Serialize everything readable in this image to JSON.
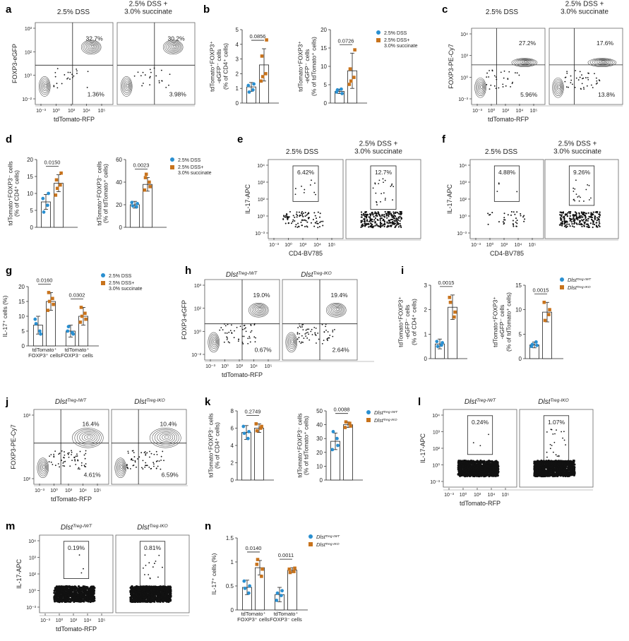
{
  "figure": {
    "palette": {
      "control": "#2a8fd0",
      "treated": "#c8731c",
      "axis": "#333333",
      "contour": "#555555",
      "dots": "#111111"
    },
    "panel_labels": [
      "a",
      "b",
      "c",
      "d",
      "e",
      "f",
      "g",
      "h",
      "i",
      "j",
      "k",
      "l",
      "m",
      "n"
    ],
    "conditions": {
      "dss": "2.5% DSS",
      "dss_succ": "2.5% DSS +\n3.0% succinate",
      "wt": "Dlst",
      "wt_sup": "Treg-IWT",
      "ko": "Dlst",
      "ko_sup": "Treg-IKO"
    },
    "legends": {
      "dss": "2.5% DSS",
      "dss_succ": "2.5% DSS+\n3.0% succinate",
      "wt": "Dlst",
      "wt_sup": "Treg-IWT",
      "ko": "Dlst",
      "ko_sup": "Treg-IKO"
    },
    "flow_axes": {
      "foxp3_egfp": "FOXP3-eGFP",
      "foxp3_pecy7": "FOXP3-PE-Cy7",
      "il17_apc": "IL-17-APC",
      "tdtomato": "tdTomato-RFP",
      "cd4": "CD4-BV785",
      "ticks_x": [
        "10⁻³",
        "10⁰",
        "10³",
        "10⁴",
        "10⁵"
      ],
      "ticks_y_a": [
        "10³",
        "10²",
        "10⁰",
        "10⁻²"
      ],
      "ticks_y_c": [
        "10⁴",
        "10³",
        "10⁰",
        "10⁻³"
      ],
      "ticks_y_e": [
        "10⁴",
        "10³",
        "10²",
        "10⁰",
        "10⁻³"
      ]
    },
    "flow_panels": {
      "a": {
        "left": {
          "q_upper": "32.7%",
          "q_lower": "1.36%"
        },
        "right": {
          "q_upper": "30.2%",
          "q_lower": "3.98%"
        }
      },
      "c": {
        "left": {
          "q_upper": "27.2%",
          "q_lower": "5.96%"
        },
        "right": {
          "q_upper": "17.6%",
          "q_lower": "13.8%"
        }
      },
      "e": {
        "left": {
          "gate": "6.42%"
        },
        "right": {
          "gate": "12.7%"
        }
      },
      "f": {
        "left": {
          "gate": "4.88%"
        },
        "right": {
          "gate": "9.26%"
        }
      },
      "h": {
        "left": {
          "q_upper": "19.0%",
          "q_lower": "0.67%"
        },
        "right": {
          "q_upper": "19.4%",
          "q_lower": "2.64%"
        }
      },
      "j": {
        "left": {
          "q_upper": "16.4%",
          "q_lower": "4.61%"
        },
        "right": {
          "q_upper": "10.4%",
          "q_lower": "6.59%"
        }
      },
      "l": {
        "left": {
          "gate": "0.24%"
        },
        "right": {
          "gate": "1.07%"
        }
      },
      "m": {
        "left": {
          "gate": "0.19%"
        },
        "right": {
          "gate": "0.81%"
        }
      }
    }
  },
  "chart_data": [
    {
      "id": "b1",
      "type": "bar",
      "ylabel": "tdTomato⁺FOXP3⁺\n-eGFP⁻ cells\n(% of CD4⁺ cells)",
      "ylim": [
        0,
        5
      ],
      "yticks": [
        0,
        1,
        2,
        3,
        4,
        5
      ],
      "p": "0.0856",
      "categories": [
        "2.5% DSS",
        "2.5% DSS + 3.0% succinate"
      ],
      "values": [
        1.1,
        2.6
      ],
      "errors": [
        0.3,
        1.1
      ],
      "points": [
        [
          1.2,
          0.9,
          0.75,
          1.3
        ],
        [
          1.5,
          2.0,
          3.2,
          4.3,
          1.8
        ]
      ]
    },
    {
      "id": "b2",
      "type": "bar",
      "ylabel": "tdTomato⁺FOXP3⁺\n-eGFP⁻ cells\n(% of tdTomato⁺ cells)",
      "ylim": [
        0,
        20
      ],
      "yticks": [
        0,
        5,
        10,
        15,
        20
      ],
      "p": "0.0726",
      "categories": [
        "2.5% DSS",
        "2.5% DSS + 3.0% succinate"
      ],
      "values": [
        3.2,
        8.8
      ],
      "errors": [
        0.6,
        4.8
      ],
      "points": [
        [
          3.0,
          3.8,
          3.6,
          2.6
        ],
        [
          5.1,
          7.0,
          9.3,
          14.5,
          6.0
        ]
      ]
    },
    {
      "id": "d1",
      "type": "bar",
      "ylabel": "tdTomato⁺FOXP3⁻ cells\n(% of CD4⁺ cells)",
      "ylim": [
        0,
        20
      ],
      "yticks": [
        0,
        5,
        10,
        15,
        20
      ],
      "p": "0.0150",
      "categories": [
        "2.5% DSS",
        "2.5% DSS + 3.0% succinate"
      ],
      "values": [
        7.5,
        13.0
      ],
      "errors": [
        2.2,
        2.5
      ],
      "points": [
        [
          8.5,
          6.5,
          4.5,
          10.0
        ],
        [
          9.5,
          12.5,
          14.0,
          16.0,
          11.5
        ]
      ]
    },
    {
      "id": "d2",
      "type": "bar",
      "ylabel": "tdTomato⁺FOXP3⁻ cells\n(% of tdTomato⁺ cells)",
      "ylim": [
        0,
        60
      ],
      "yticks": [
        0,
        20,
        40,
        60
      ],
      "p": "0.0023",
      "categories": [
        "2.5% DSS",
        "2.5% DSS + 3.0% succinate"
      ],
      "values": [
        20,
        38
      ],
      "errors": [
        3,
        6
      ],
      "points": [
        [
          22,
          18,
          19,
          21
        ],
        [
          33,
          40,
          44,
          36,
          47
        ]
      ]
    },
    {
      "id": "g",
      "type": "bar",
      "ylabel": "IL-17⁺ cells (%)",
      "ylim": [
        0,
        20
      ],
      "yticks": [
        0,
        5,
        10,
        15,
        20
      ],
      "groups": [
        "tdTomato⁺\nFOXP3⁺ cells",
        "tdTomato⁺\nFOXP3⁻ cells"
      ],
      "p": [
        "0.0160",
        "0.0302"
      ],
      "values": [
        [
          7,
          15
        ],
        [
          5,
          10
        ]
      ],
      "errors": [
        [
          3,
          3
        ],
        [
          2,
          3
        ]
      ],
      "points": [
        [
          [
            9,
            5,
            7.5,
            4
          ],
          [
            12,
            16,
            18,
            14,
            15
          ]
        ],
        [
          [
            5,
            4.5,
            6.5,
            4
          ],
          [
            8,
            11,
            13,
            9,
            10
          ]
        ]
      ]
    },
    {
      "id": "i1",
      "type": "bar",
      "ylabel": "tdTomato⁺FOXP3⁺\n-eGFP⁻ cells\n(% of CD4⁺ cells)",
      "ylim": [
        0,
        3
      ],
      "yticks": [
        0,
        1,
        2,
        3
      ],
      "p": "0.0015",
      "categories": [
        "Dlst Treg-IWT",
        "Dlst Treg-IKO"
      ],
      "values": [
        0.6,
        2.1
      ],
      "errors": [
        0.2,
        0.5
      ],
      "points": [
        [
          0.7,
          0.55,
          0.5,
          0.65
        ],
        [
          2.5,
          1.7,
          2.3,
          1.9
        ]
      ]
    },
    {
      "id": "i2",
      "type": "bar",
      "ylabel": "tdTomato⁺FOXP3⁺\n-eGFP⁻ cells\n(% of tdTomato⁺ cells)",
      "ylim": [
        0,
        15
      ],
      "yticks": [
        0,
        5,
        10,
        15
      ],
      "p": "0.0015",
      "categories": [
        "Dlst Treg-IWT",
        "Dlst Treg-IKO"
      ],
      "values": [
        2.8,
        9.5
      ],
      "errors": [
        0.6,
        2.0
      ],
      "points": [
        [
          2.5,
          3.4,
          2.9,
          2.7
        ],
        [
          11.5,
          9.0,
          7.8,
          10.0
        ]
      ]
    },
    {
      "id": "k1",
      "type": "bar",
      "ylabel": "tdTomato⁺FOXP3⁻ cells\n(% of CD4⁺ cells)",
      "ylim": [
        0,
        8
      ],
      "yticks": [
        0,
        2,
        4,
        6,
        8
      ],
      "p": "0.2749",
      "categories": [
        "Dlst Treg-IWT",
        "Dlst Treg-IKO"
      ],
      "values": [
        5.5,
        6.0
      ],
      "errors": [
        0.8,
        0.5
      ],
      "points": [
        [
          6.2,
          4.8,
          5.4,
          5.6
        ],
        [
          6.5,
          6.0,
          5.7,
          6.2
        ]
      ]
    },
    {
      "id": "k2",
      "type": "bar",
      "ylabel": "tdTomato⁺FOXP3⁻ cells\n(% of tdTomato⁺ cells)",
      "ylim": [
        0,
        50
      ],
      "yticks": [
        0,
        10,
        20,
        30,
        40,
        50
      ],
      "p": "0.0088",
      "categories": [
        "Dlst Treg-IWT",
        "Dlst Treg-IKO"
      ],
      "values": [
        28,
        40
      ],
      "errors": [
        6,
        2
      ],
      "points": [
        [
          22,
          30,
          35,
          25
        ],
        [
          38,
          41,
          42,
          39
        ]
      ]
    },
    {
      "id": "n",
      "type": "bar",
      "ylabel": "IL-17⁺ cells (%)",
      "ylim": [
        0,
        1.5
      ],
      "yticks": [
        0,
        0.5,
        1.0,
        1.5
      ],
      "groups": [
        "tdTomato⁺\nFOXP3⁺ cells",
        "tdTomato⁺\nFOXP3⁻ cells"
      ],
      "p": [
        "0.0140",
        "0.0011"
      ],
      "values": [
        [
          0.47,
          0.88
        ],
        [
          0.32,
          0.83
        ]
      ],
      "errors": [
        [
          0.15,
          0.15
        ],
        [
          0.15,
          0.05
        ]
      ],
      "points": [
        [
          [
            0.6,
            0.35,
            0.45,
            0.5
          ],
          [
            0.95,
            0.7,
            1.05,
            0.85
          ]
        ],
        [
          [
            0.2,
            0.3,
            0.35,
            0.4
          ],
          [
            0.85,
            0.8,
            0.78,
            0.87
          ]
        ]
      ]
    }
  ]
}
